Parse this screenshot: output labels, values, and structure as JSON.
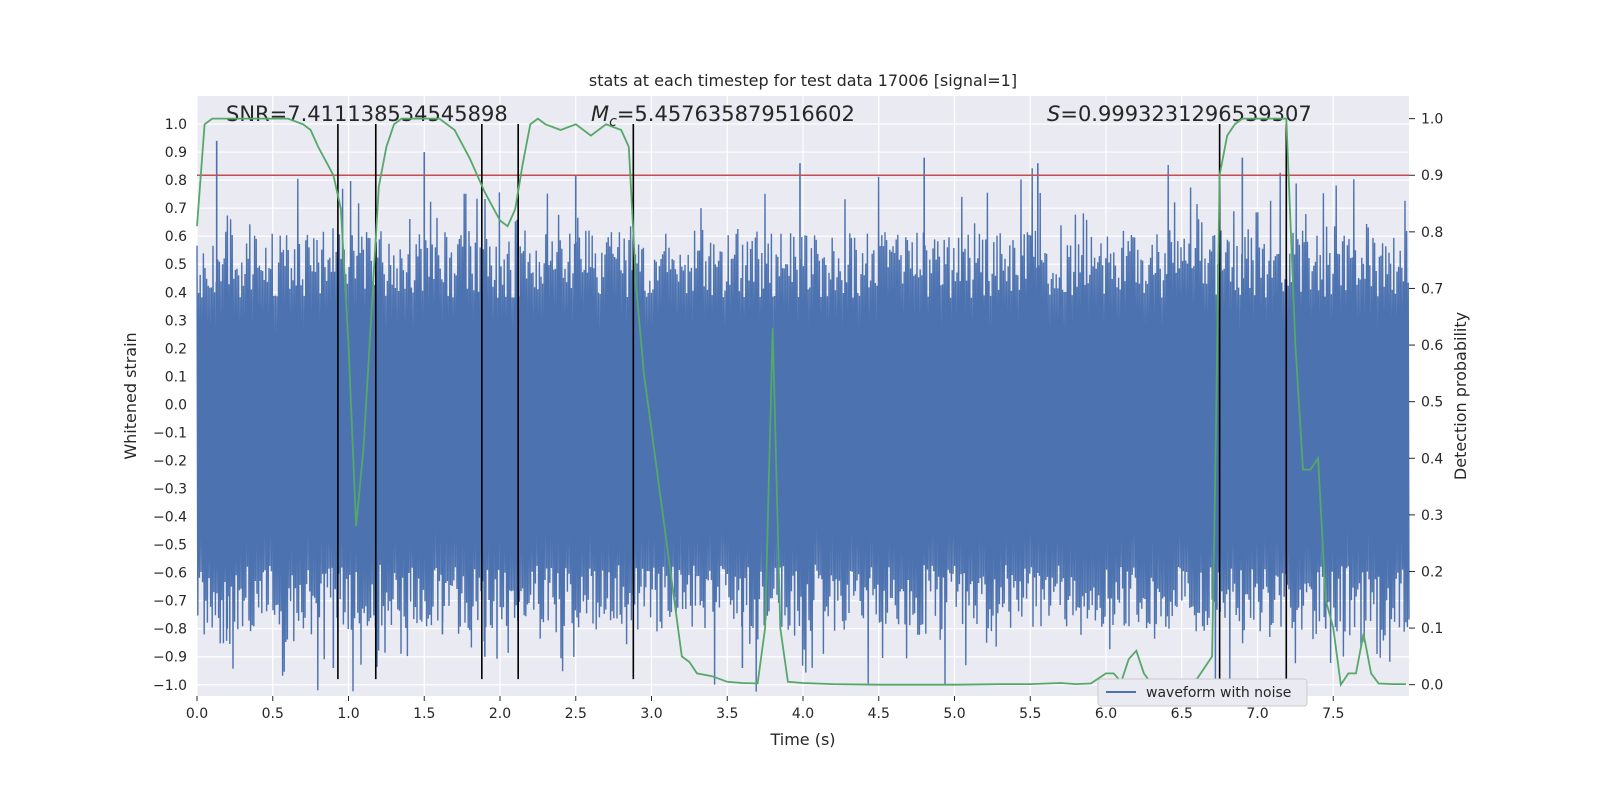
{
  "chart_data": {
    "type": "line",
    "title": "stats at each timestep for test data 17006 [signal=1]",
    "xlabel": "Time (s)",
    "ylabel": "Whitened strain",
    "ylabel_right": "Detection probability",
    "xlim": [
      0.0,
      8.0
    ],
    "ylim": [
      -1.04,
      1.1
    ],
    "ylim_right": [
      -0.02,
      1.04
    ],
    "grid": true,
    "x_ticks": [
      0.0,
      0.5,
      1.0,
      1.5,
      2.0,
      2.5,
      3.0,
      3.5,
      4.0,
      4.5,
      5.0,
      5.5,
      6.0,
      6.5,
      7.0,
      7.5
    ],
    "x_tick_labels": [
      "0.0",
      "0.5",
      "1.0",
      "1.5",
      "2.0",
      "2.5",
      "3.0",
      "3.5",
      "4.0",
      "4.5",
      "5.0",
      "5.5",
      "6.0",
      "6.5",
      "7.0",
      "7.5"
    ],
    "y_ticks": [
      1.0,
      0.9,
      0.8,
      0.7,
      0.6,
      0.5,
      0.4,
      0.3,
      0.2,
      0.1,
      0.0,
      -0.1,
      -0.2,
      -0.3,
      -0.4,
      -0.5,
      -0.6,
      -0.7,
      -0.8,
      -0.9,
      -1.0
    ],
    "y_tick_labels": [
      "1.0",
      "0.9",
      "0.8",
      "0.7",
      "0.6",
      "0.5",
      "0.4",
      "0.3",
      "0.2",
      "0.1",
      "0.0",
      "−0.1",
      "−0.2",
      "−0.3",
      "−0.4",
      "−0.5",
      "−0.6",
      "−0.7",
      "−0.8",
      "−0.9",
      "−1.0"
    ],
    "y_right_ticks": [
      1.0,
      0.9,
      0.8,
      0.7,
      0.6,
      0.5,
      0.4,
      0.3,
      0.2,
      0.1,
      0.0
    ],
    "y_right_tick_labels": [
      "1.0",
      "0.9",
      "0.8",
      "0.7",
      "0.6",
      "0.5",
      "0.4",
      "0.3",
      "0.2",
      "0.1",
      "0.0"
    ],
    "annotations": {
      "snr": "SNR=7.411138534545898",
      "mc_prefix": "M",
      "mc_sub": "c",
      "mc_value": "=5.457635879516602",
      "s_prefix": "S",
      "s_value": "=0.9993231296539307"
    },
    "threshold_right": 0.9,
    "vertical_lines_x": [
      0.93,
      1.18,
      1.88,
      2.12,
      2.88,
      6.75,
      7.19
    ],
    "waveform": {
      "name": "waveform with noise",
      "color": "#4c72b0",
      "band_top_mean": 0.5,
      "band_bottom_mean": -0.45,
      "spikes": [
        {
          "x": 0.13,
          "y": 0.94
        },
        {
          "x": 0.2,
          "y": -0.8
        },
        {
          "x": 0.9,
          "y": -0.94
        },
        {
          "x": 1.5,
          "y": 0.9
        },
        {
          "x": 1.62,
          "y": -0.82
        },
        {
          "x": 1.9,
          "y": -0.9
        },
        {
          "x": 2.5,
          "y": 0.82
        },
        {
          "x": 3.6,
          "y": -0.94
        },
        {
          "x": 3.82,
          "y": 0.28
        },
        {
          "x": 3.98,
          "y": 0.86
        },
        {
          "x": 4.8,
          "y": 0.88
        },
        {
          "x": 5.55,
          "y": 0.86
        },
        {
          "x": 6.9,
          "y": 0.88
        },
        {
          "x": 7.45,
          "y": -0.8
        }
      ]
    },
    "detection_probability": {
      "name": "detection probability",
      "color": "#55a868",
      "x": [
        0.0,
        0.05,
        0.1,
        0.2,
        0.3,
        0.5,
        0.6,
        0.7,
        0.75,
        0.8,
        0.9,
        0.95,
        1.0,
        1.05,
        1.1,
        1.15,
        1.2,
        1.25,
        1.3,
        1.35,
        1.4,
        1.5,
        1.6,
        1.7,
        1.8,
        1.9,
        2.0,
        2.05,
        2.1,
        2.15,
        2.2,
        2.25,
        2.3,
        2.4,
        2.5,
        2.6,
        2.7,
        2.8,
        2.85,
        2.9,
        2.95,
        3.0,
        3.1,
        3.2,
        3.25,
        3.3,
        3.4,
        3.5,
        3.6,
        3.7,
        3.75,
        3.8,
        3.85,
        3.9,
        4.0,
        4.2,
        4.5,
        4.8,
        5.0,
        5.3,
        5.5,
        5.7,
        5.8,
        5.9,
        6.0,
        6.05,
        6.1,
        6.15,
        6.2,
        6.25,
        6.3,
        6.35,
        6.4,
        6.5,
        6.6,
        6.7,
        6.72,
        6.75,
        6.8,
        6.85,
        6.9,
        7.0,
        7.1,
        7.19,
        7.25,
        7.3,
        7.35,
        7.4,
        7.45,
        7.5,
        7.55,
        7.6,
        7.65,
        7.7,
        7.75,
        7.8,
        7.9,
        7.98
      ],
      "values": [
        0.81,
        0.99,
        1.0,
        1.0,
        1.0,
        1.0,
        1.0,
        0.99,
        0.98,
        0.95,
        0.9,
        0.84,
        0.6,
        0.28,
        0.42,
        0.65,
        0.88,
        0.95,
        0.99,
        1.0,
        1.0,
        1.0,
        1.0,
        0.98,
        0.93,
        0.87,
        0.82,
        0.81,
        0.84,
        0.92,
        0.99,
        1.0,
        0.99,
        0.98,
        0.99,
        0.97,
        0.99,
        0.98,
        0.95,
        0.7,
        0.55,
        0.45,
        0.25,
        0.05,
        0.04,
        0.02,
        0.015,
        0.005,
        0.003,
        0.002,
        0.1,
        0.63,
        0.1,
        0.005,
        0.003,
        0.001,
        0.0,
        0.0,
        0.0,
        0.001,
        0.001,
        0.003,
        0.001,
        0.002,
        0.02,
        0.02,
        0.005,
        0.045,
        0.06,
        0.02,
        0.002,
        0.005,
        0.002,
        0.005,
        0.01,
        0.05,
        0.35,
        0.9,
        0.97,
        0.99,
        1.0,
        1.0,
        1.0,
        1.0,
        0.6,
        0.38,
        0.38,
        0.4,
        0.15,
        0.1,
        0.0,
        0.02,
        0.02,
        0.09,
        0.02,
        0.002,
        0.001,
        0.001
      ]
    }
  }
}
